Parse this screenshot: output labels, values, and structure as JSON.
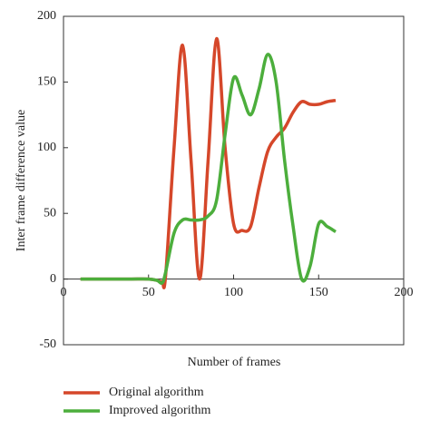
{
  "chart_data": {
    "type": "line",
    "xlabel": "Number of frames",
    "ylabel": "Inter frame difference value",
    "x": [
      10,
      20,
      30,
      40,
      50,
      55,
      58,
      60,
      65,
      70,
      75,
      80,
      85,
      90,
      95,
      100,
      105,
      110,
      115,
      120,
      125,
      130,
      135,
      140,
      145,
      150,
      155,
      160
    ],
    "series": [
      {
        "name": "Original algorithm",
        "color": "#d5472a",
        "values": [
          0,
          0,
          0,
          0,
          0,
          -1,
          -2,
          2,
          100,
          178,
          90,
          0,
          90,
          183,
          100,
          42,
          37,
          40,
          70,
          97,
          108,
          115,
          127,
          135,
          133,
          133,
          135,
          136
        ]
      },
      {
        "name": "Improved algorithm",
        "color": "#4cae3c",
        "values": [
          0,
          0,
          0,
          0,
          0,
          -1,
          -3,
          5,
          35,
          45,
          45,
          45,
          48,
          60,
          110,
          153,
          140,
          125,
          145,
          171,
          150,
          90,
          40,
          0,
          10,
          42,
          40,
          36
        ]
      }
    ],
    "xlim": [
      0,
      200
    ],
    "xticks": [
      0,
      50,
      100,
      150,
      200
    ],
    "ylim": [
      -50,
      200
    ],
    "yticks": [
      -50,
      0,
      50,
      100,
      150,
      200
    ]
  }
}
